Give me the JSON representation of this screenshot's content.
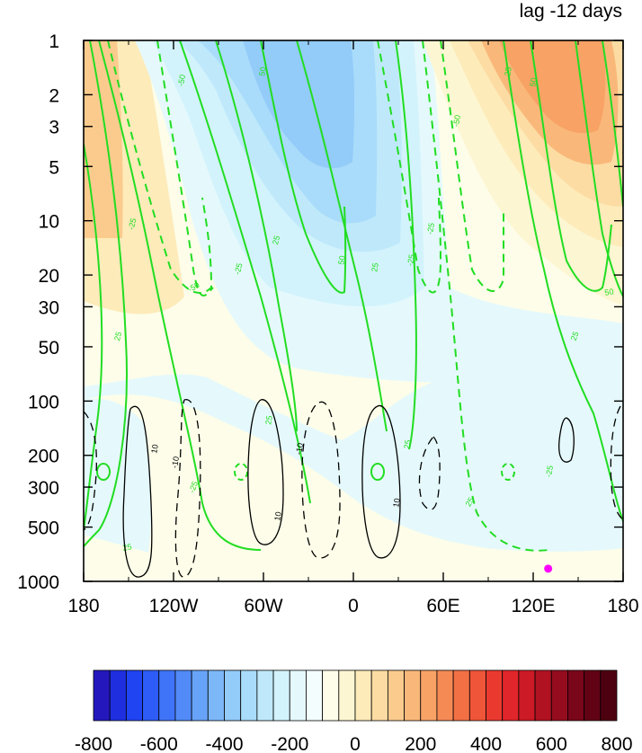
{
  "chart_data": {
    "type": "heatmap",
    "title": "lag -12 days",
    "x_ticks": [
      "180",
      "120W",
      "60W",
      "0",
      "60E",
      "120E",
      "180"
    ],
    "x_values": [
      -180,
      -120,
      -60,
      0,
      60,
      120,
      180
    ],
    "y_ticks": [
      "1",
      "2",
      "3",
      "5",
      "10",
      "20",
      "30",
      "50",
      "100",
      "200",
      "300",
      "500",
      "1000"
    ],
    "y_values": [
      1,
      2,
      3,
      5,
      10,
      20,
      30,
      50,
      100,
      200,
      300,
      500,
      1000
    ],
    "y_scale": "log",
    "y_inverted": true,
    "xlim": [
      -180,
      180
    ],
    "ylim": [
      1000,
      1
    ],
    "colorbar": {
      "levels": [
        -800,
        -750,
        -700,
        -650,
        -600,
        -550,
        -500,
        -450,
        -400,
        -350,
        -300,
        -250,
        -200,
        -150,
        -100,
        -50,
        0,
        50,
        100,
        150,
        200,
        250,
        300,
        350,
        400,
        450,
        500,
        550,
        600,
        650,
        700,
        750,
        800
      ],
      "tick_labels": [
        "-800",
        "-600",
        "-400",
        "-200",
        "0",
        "200",
        "400",
        "600",
        "800"
      ],
      "tick_values": [
        -800,
        -600,
        -400,
        -200,
        0,
        200,
        400,
        600,
        800
      ],
      "colors": [
        "#2418bd",
        "#1f2fdf",
        "#2144f2",
        "#2d5cf6",
        "#3f74f8",
        "#528af8",
        "#67a3f8",
        "#7cb7f8",
        "#93cbf9",
        "#a9dcfa",
        "#bfe9fb",
        "#d3f3fc",
        "#e5f9fc",
        "#f3fdfd",
        "#fdfde9",
        "#fdf6d2",
        "#fdebba",
        "#fcdca3",
        "#fbcb8e",
        "#f9b87a",
        "#f8a266",
        "#f68a55",
        "#f37045",
        "#ef5538",
        "#ea3a30",
        "#e0262a",
        "#cc1a26",
        "#b11222",
        "#950c1e",
        "#7a061a",
        "#620315",
        "#4d0010"
      ]
    },
    "shading": [
      {
        "region": "upper-west positive",
        "value": 150
      },
      {
        "region": "upper-central negative",
        "value": -350
      },
      {
        "region": "upper-east positive",
        "value": 400
      },
      {
        "region": "mid troposphere negative tongue",
        "value": -100
      },
      {
        "region": "lower troposphere east negative",
        "value": -80
      }
    ],
    "green_contours": {
      "color": "#22dd22",
      "solid_value": 25,
      "dashed_value": -25,
      "labels": [
        "25",
        "-25",
        "50",
        "-50"
      ]
    },
    "black_contours": {
      "color": "#000000",
      "solid_value": 10,
      "dashed_value": -10,
      "labels": [
        "10",
        "-10"
      ]
    },
    "marker": {
      "lon": 130,
      "pressure": 850,
      "color": "#ff00ff"
    }
  }
}
